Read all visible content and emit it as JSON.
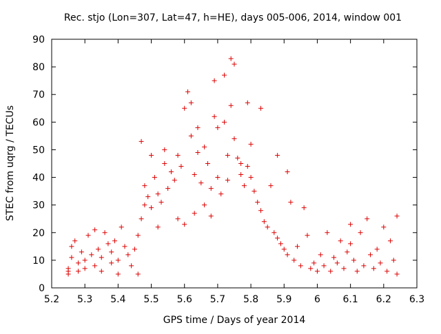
{
  "chart_data": {
    "type": "scatter",
    "title": "Rec. stjo (Lon=307, Lat=47, h=HE), days 005-006, 2014, window 001",
    "xlabel": "GPS time / Days of year 2014",
    "ylabel": "STEC from uqrg / TECUs",
    "xlim": [
      5.2,
      6.3
    ],
    "ylim": [
      0,
      90
    ],
    "x_ticks": [
      "5.2",
      "5.3",
      "5.4",
      "5.5",
      "5.6",
      "5.7",
      "5.8",
      "5.9",
      "6",
      "6.1",
      "6.2",
      "6.3"
    ],
    "y_ticks": [
      "0",
      "10",
      "20",
      "30",
      "40",
      "50",
      "60",
      "70",
      "80",
      "90"
    ],
    "grid": false,
    "legend": "none",
    "marker": "+",
    "marker_color": "#dd0000",
    "series": [
      {
        "points": [
          [
            5.25,
            6
          ],
          [
            5.25,
            5
          ],
          [
            5.25,
            7
          ],
          [
            5.26,
            15
          ],
          [
            5.26,
            11
          ],
          [
            5.27,
            17
          ],
          [
            5.28,
            9
          ],
          [
            5.28,
            6
          ],
          [
            5.29,
            13
          ],
          [
            5.3,
            10
          ],
          [
            5.3,
            7
          ],
          [
            5.31,
            19
          ],
          [
            5.32,
            12
          ],
          [
            5.33,
            21
          ],
          [
            5.33,
            8
          ],
          [
            5.34,
            14
          ],
          [
            5.35,
            11
          ],
          [
            5.35,
            6
          ],
          [
            5.36,
            20
          ],
          [
            5.37,
            16
          ],
          [
            5.38,
            13
          ],
          [
            5.38,
            9
          ],
          [
            5.39,
            17
          ],
          [
            5.4,
            10
          ],
          [
            5.4,
            5
          ],
          [
            5.41,
            22
          ],
          [
            5.42,
            15
          ],
          [
            5.43,
            12
          ],
          [
            5.44,
            8
          ],
          [
            5.45,
            14
          ],
          [
            5.46,
            19
          ],
          [
            5.46,
            5
          ],
          [
            5.47,
            25
          ],
          [
            5.47,
            53
          ],
          [
            5.48,
            30
          ],
          [
            5.48,
            37
          ],
          [
            5.49,
            33
          ],
          [
            5.5,
            29
          ],
          [
            5.5,
            48
          ],
          [
            5.51,
            40
          ],
          [
            5.52,
            22
          ],
          [
            5.52,
            34
          ],
          [
            5.53,
            31
          ],
          [
            5.54,
            45
          ],
          [
            5.54,
            50
          ],
          [
            5.55,
            36
          ],
          [
            5.56,
            42
          ],
          [
            5.57,
            39
          ],
          [
            5.58,
            48
          ],
          [
            5.58,
            25
          ],
          [
            5.59,
            44
          ],
          [
            5.6,
            23
          ],
          [
            5.6,
            65
          ],
          [
            5.61,
            71
          ],
          [
            5.62,
            67
          ],
          [
            5.62,
            55
          ],
          [
            5.63,
            41
          ],
          [
            5.63,
            27
          ],
          [
            5.64,
            58
          ],
          [
            5.64,
            49
          ],
          [
            5.65,
            38
          ],
          [
            5.66,
            51
          ],
          [
            5.66,
            30
          ],
          [
            5.67,
            45
          ],
          [
            5.68,
            36
          ],
          [
            5.68,
            26
          ],
          [
            5.69,
            75
          ],
          [
            5.69,
            62
          ],
          [
            5.7,
            58
          ],
          [
            5.7,
            40
          ],
          [
            5.71,
            34
          ],
          [
            5.72,
            77
          ],
          [
            5.72,
            60
          ],
          [
            5.73,
            48
          ],
          [
            5.73,
            39
          ],
          [
            5.74,
            83
          ],
          [
            5.74,
            66
          ],
          [
            5.75,
            81
          ],
          [
            5.75,
            54
          ],
          [
            5.76,
            47
          ],
          [
            5.77,
            45
          ],
          [
            5.77,
            41
          ],
          [
            5.78,
            37
          ],
          [
            5.79,
            67
          ],
          [
            5.79,
            44
          ],
          [
            5.8,
            52
          ],
          [
            5.8,
            40
          ],
          [
            5.81,
            35
          ],
          [
            5.82,
            31
          ],
          [
            5.83,
            65
          ],
          [
            5.83,
            28
          ],
          [
            5.84,
            24
          ],
          [
            5.85,
            22
          ],
          [
            5.86,
            37
          ],
          [
            5.87,
            20
          ],
          [
            5.88,
            48
          ],
          [
            5.88,
            18
          ],
          [
            5.89,
            16
          ],
          [
            5.9,
            14
          ],
          [
            5.91,
            42
          ],
          [
            5.91,
            12
          ],
          [
            5.92,
            31
          ],
          [
            5.93,
            10
          ],
          [
            5.94,
            15
          ],
          [
            5.95,
            8
          ],
          [
            5.96,
            29
          ],
          [
            5.97,
            19
          ],
          [
            5.98,
            7
          ],
          [
            5.99,
            9
          ],
          [
            6.0,
            6
          ],
          [
            6.01,
            12
          ],
          [
            6.02,
            8
          ],
          [
            6.03,
            20
          ],
          [
            6.04,
            6
          ],
          [
            6.05,
            11
          ],
          [
            6.06,
            9
          ],
          [
            6.07,
            17
          ],
          [
            6.08,
            7
          ],
          [
            6.09,
            13
          ],
          [
            6.1,
            23
          ],
          [
            6.1,
            16
          ],
          [
            6.11,
            10
          ],
          [
            6.12,
            6
          ],
          [
            6.13,
            20
          ],
          [
            6.14,
            8
          ],
          [
            6.15,
            25
          ],
          [
            6.16,
            12
          ],
          [
            6.17,
            7
          ],
          [
            6.18,
            14
          ],
          [
            6.19,
            9
          ],
          [
            6.2,
            22
          ],
          [
            6.21,
            6
          ],
          [
            6.22,
            17
          ],
          [
            6.23,
            10
          ],
          [
            6.24,
            26
          ],
          [
            6.24,
            5
          ]
        ]
      }
    ]
  }
}
